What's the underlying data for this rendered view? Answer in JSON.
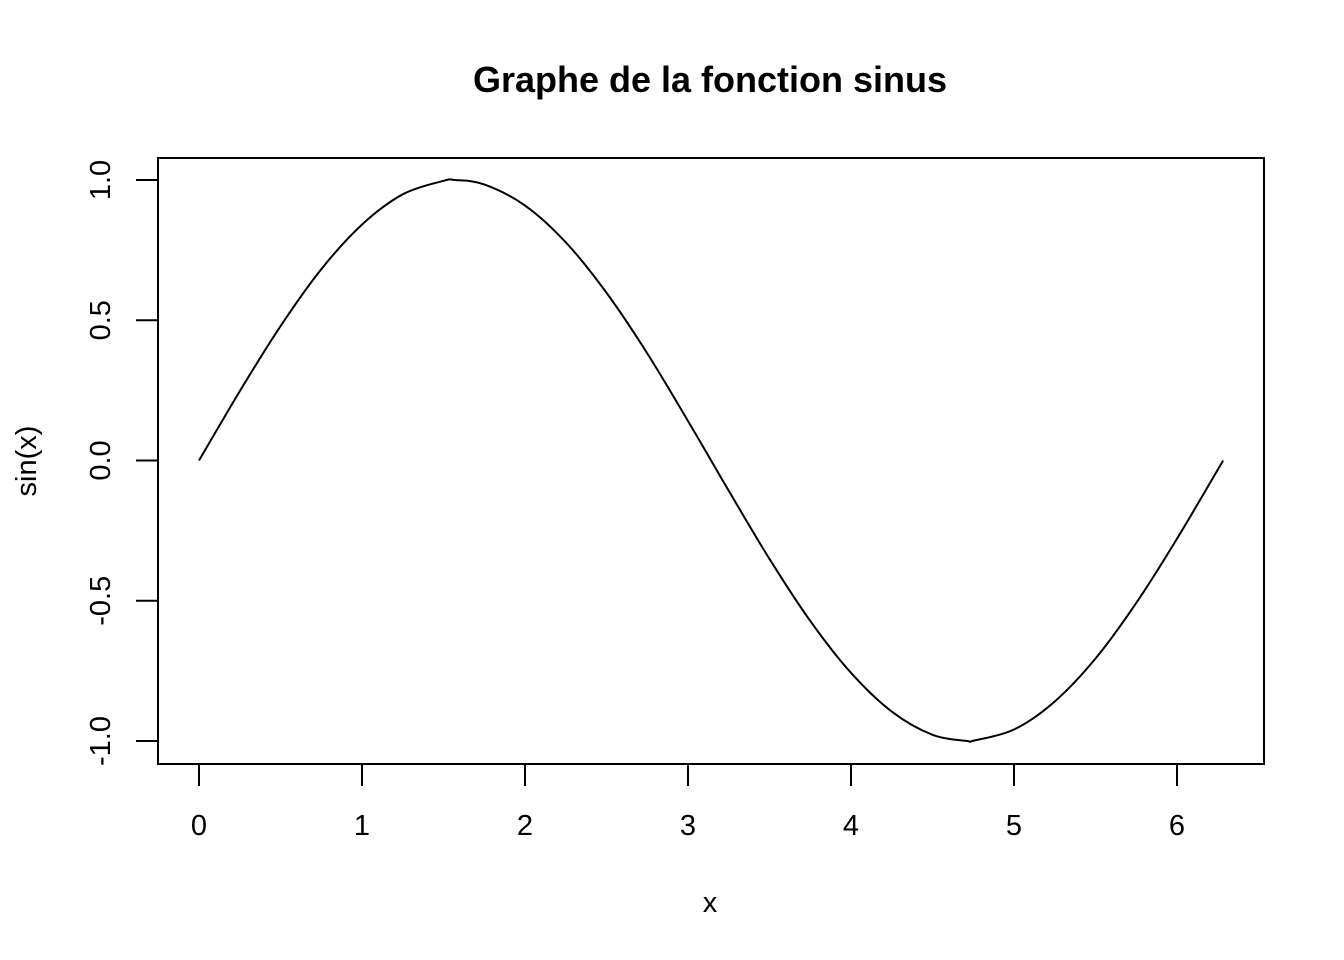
{
  "chart_data": {
    "type": "line",
    "title": "Graphe de la fonction sinus",
    "xlabel": "x",
    "ylabel": "sin(x)",
    "xlim": [
      0,
      6.283185307
    ],
    "ylim": [
      -1,
      1
    ],
    "xticks": [
      "0",
      "1",
      "2",
      "3",
      "4",
      "5",
      "6"
    ],
    "yticks": [
      "-1.0",
      "-0.5",
      "0.0",
      "0.5",
      "1.0"
    ],
    "grid": false,
    "legend": "none",
    "series": [
      {
        "x": [
          0,
          0.25,
          0.5,
          0.75,
          1,
          1.25,
          1.5,
          1.5708,
          1.75,
          2,
          2.25,
          2.5,
          2.75,
          3,
          3.1416,
          3.25,
          3.5,
          3.75,
          4,
          4.25,
          4.5,
          4.7124,
          4.75,
          5,
          5.25,
          5.5,
          5.75,
          6,
          6.2832
        ],
        "y": [
          0,
          0.247,
          0.479,
          0.682,
          0.841,
          0.949,
          0.997,
          1,
          0.984,
          0.909,
          0.778,
          0.598,
          0.382,
          0.141,
          0,
          -0.108,
          -0.351,
          -0.572,
          -0.757,
          -0.895,
          -0.978,
          -1,
          -0.999,
          -0.959,
          -0.859,
          -0.706,
          -0.508,
          -0.279,
          0
        ],
        "color": "#000000"
      }
    ]
  }
}
